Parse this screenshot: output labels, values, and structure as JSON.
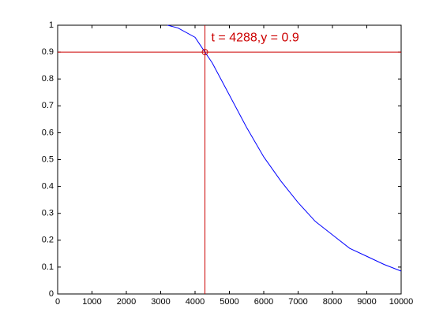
{
  "chart_data": {
    "type": "line",
    "x": [
      3200,
      3500,
      4000,
      4288,
      4500,
      5000,
      5500,
      6000,
      6500,
      7000,
      7500,
      8000,
      8500,
      9000,
      9500,
      10000
    ],
    "series": [
      {
        "color": "#0000ff",
        "values": [
          1.0,
          0.99,
          0.955,
          0.9,
          0.86,
          0.74,
          0.62,
          0.51,
          0.42,
          0.34,
          0.27,
          0.22,
          0.17,
          0.14,
          0.11,
          0.085
        ]
      }
    ],
    "xlim": [
      0,
      10000
    ],
    "ylim": [
      0,
      1
    ],
    "xticks": [
      0,
      1000,
      2000,
      3000,
      4000,
      5000,
      6000,
      7000,
      8000,
      9000,
      10000
    ],
    "yticks": [
      0,
      0.1,
      0.2,
      0.3,
      0.4,
      0.5,
      0.6,
      0.7,
      0.8,
      0.9,
      1
    ],
    "marker": {
      "x": 4288,
      "y": 0.9,
      "color": "#cc0000"
    },
    "annotation": "t = 4288,y = 0.9"
  }
}
